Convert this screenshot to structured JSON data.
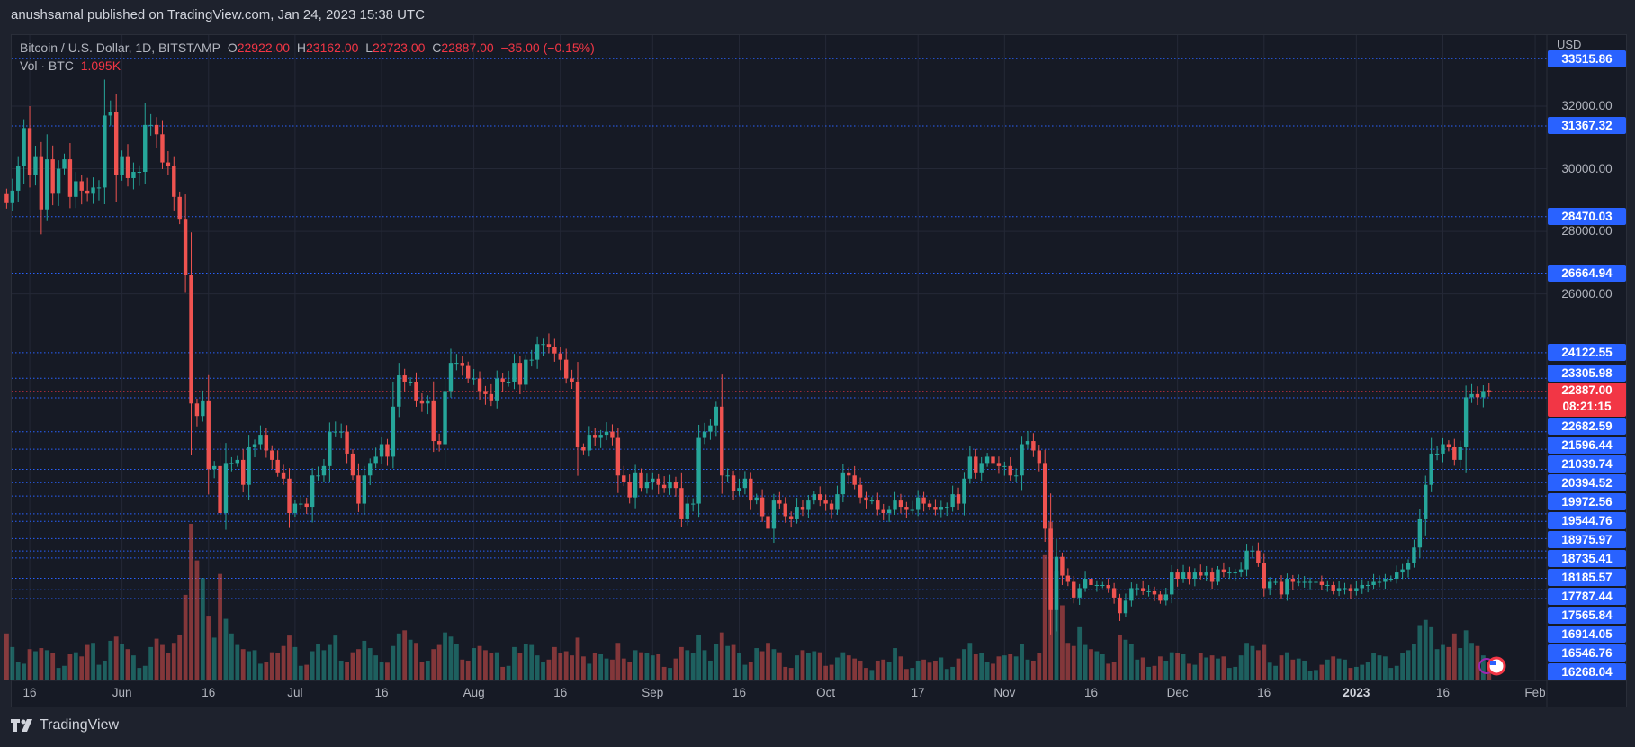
{
  "publisher_line": "anushsamal published on TradingView.com, Jan 24, 2023 15:38 UTC",
  "legend": {
    "symbol": "Bitcoin / U.S. Dollar, 1D, BITSTAMP",
    "open_label": "O",
    "open": "22922.00",
    "high_label": "H",
    "high": "23162.00",
    "low_label": "L",
    "low": "22723.00",
    "close_label": "C",
    "close": "22887.00",
    "change": "−35.00 (−0.15%)",
    "vol_label": "Vol · BTC",
    "vol_value": "1.095K"
  },
  "footer": {
    "brand": "TradingView",
    "logo_icon": "tradingview-logo-icon"
  },
  "colors": {
    "up": "#26a69a",
    "down": "#ef5350",
    "level_line": "#2962ff",
    "current_price": "#f23645",
    "background": "#161a25"
  },
  "chart_data": {
    "type": "candlestick",
    "symbol": "BTCUSD",
    "interval": "1D",
    "start_date": "2022-05-12",
    "currency": "USD",
    "closes": [
      28900,
      29300,
      30100,
      31300,
      29800,
      30400,
      28700,
      30300,
      29200,
      30000,
      30300,
      29100,
      29600,
      29300,
      29200,
      29400,
      29400,
      31700,
      31800,
      29800,
      30400,
      29700,
      29900,
      29900,
      31400,
      31400,
      31100,
      30200,
      30100,
      29100,
      28400,
      26600,
      22500,
      22100,
      22600,
      20400,
      20500,
      19000,
      20600,
      20600,
      20700,
      19900,
      21100,
      21200,
      21500,
      21000,
      20700,
      20300,
      20100,
      19000,
      19300,
      19300,
      19200,
      20200,
      20200,
      20500,
      21600,
      21600,
      21600,
      20900,
      20200,
      19300,
      20200,
      20600,
      20800,
      21200,
      20800,
      22400,
      23400,
      23200,
      23200,
      22600,
      22500,
      22600,
      21300,
      21200,
      22900,
      23800,
      23800,
      23700,
      23300,
      23300,
      22900,
      22800,
      22600,
      23300,
      23200,
      23200,
      23800,
      23100,
      23900,
      23900,
      24400,
      24400,
      24300,
      24100,
      23900,
      23300,
      23200,
      21100,
      21000,
      21500,
      21400,
      21500,
      21600,
      21400,
      20200,
      20000,
      19500,
      20300,
      19800,
      20000,
      20100,
      19900,
      19800,
      20000,
      19800,
      18800,
      19300,
      19300,
      21400,
      21600,
      21800,
      22400,
      20200,
      20200,
      19700,
      19800,
      20100,
      19400,
      19500,
      18900,
      18500,
      19400,
      19300,
      18900,
      18800,
      19200,
      19100,
      19400,
      19600,
      19400,
      19300,
      19100,
      19600,
      20300,
      20200,
      19900,
      19500,
      19400,
      19400,
      19100,
      19000,
      19100,
      19400,
      19200,
      19100,
      19100,
      19500,
      19300,
      19200,
      19100,
      19200,
      19200,
      19600,
      19300,
      20100,
      20800,
      20300,
      20600,
      20800,
      20600,
      20500,
      20500,
      20200,
      20200,
      21200,
      21300,
      21000,
      20600,
      18500,
      15900,
      17600,
      17000,
      16800,
      16300,
      16600,
      16900,
      16700,
      16700,
      16700,
      16600,
      16300,
      15800,
      16200,
      16600,
      16600,
      16500,
      16500,
      16400,
      16200,
      16400,
      17100,
      16900,
      17100,
      16900,
      17100,
      17000,
      17100,
      16800,
      17200,
      17100,
      17100,
      17100,
      17200,
      17800,
      17800,
      17400,
      16600,
      16800,
      16800,
      16400,
      16900,
      16800,
      16800,
      16800,
      16800,
      16800,
      16700,
      16700,
      16500,
      16600,
      16600,
      16500,
      16600,
      16700,
      16700,
      16800,
      16800,
      16900,
      16900,
      17100,
      17200,
      17400,
      17900,
      18800,
      19900,
      20900,
      20900,
      21200,
      21100,
      20700,
      21100,
      22700,
      22800,
      22700,
      22900,
      22887
    ],
    "volumes_k_btc": [
      4.5,
      3.2,
      1.8,
      1.6,
      3.0,
      2.8,
      3.1,
      2.9,
      2.6,
      1.2,
      1.4,
      2.5,
      2.7,
      2.3,
      3.4,
      3.6,
      1.5,
      1.9,
      3.8,
      4.2,
      3.5,
      3.0,
      2.4,
      1.2,
      1.4,
      3.2,
      4.0,
      3.4,
      2.6,
      3.6,
      4.4,
      8.2,
      15.0,
      11.5,
      9.8,
      6.2,
      4.1,
      10.2,
      5.9,
      4.5,
      3.4,
      3.0,
      2.8,
      2.9,
      1.6,
      1.8,
      2.7,
      2.6,
      3.3,
      4.3,
      3.2,
      1.4,
      1.5,
      2.8,
      3.5,
      2.9,
      3.4,
      4.3,
      1.9,
      1.8,
      2.7,
      3.0,
      3.8,
      3.1,
      2.4,
      1.8,
      1.7,
      3.3,
      4.5,
      4.8,
      3.9,
      3.6,
      1.8,
      1.9,
      3.0,
      3.4,
      4.6,
      4.2,
      3.5,
      2.0,
      1.9,
      3.1,
      3.3,
      2.9,
      2.6,
      2.7,
      1.3,
      1.4,
      3.2,
      2.6,
      3.5,
      3.4,
      2.4,
      1.8,
      2.0,
      3.2,
      2.6,
      2.8,
      2.4,
      4.1,
      2.3,
      1.6,
      2.6,
      2.5,
      2.1,
      2.0,
      3.6,
      2.1,
      1.8,
      2.9,
      2.7,
      2.6,
      2.4,
      2.5,
      1.3,
      1.2,
      2.1,
      3.2,
      2.9,
      2.6,
      4.4,
      2.9,
      1.9,
      3.5,
      4.6,
      3.3,
      3.4,
      2.6,
      1.5,
      1.8,
      3.1,
      2.8,
      3.6,
      3.0,
      2.7,
      1.3,
      1.2,
      2.4,
      2.9,
      2.6,
      2.8,
      2.7,
      1.4,
      1.5,
      2.2,
      2.7,
      2.4,
      2.1,
      1.9,
      1.2,
      1.0,
      1.9,
      2.0,
      1.8,
      3.1,
      2.3,
      1.1,
      1.2,
      1.9,
      2.0,
      1.7,
      1.9,
      2.2,
      1.1,
      1.3,
      2.1,
      3.0,
      3.6,
      2.5,
      2.6,
      1.8,
      1.6,
      2.3,
      2.4,
      2.5,
      2.3,
      3.5,
      2.0,
      1.9,
      2.6,
      12.0,
      15.2,
      10.5,
      7.2,
      3.6,
      3.3,
      5.1,
      3.4,
      3.0,
      2.8,
      2.5,
      1.6,
      1.8,
      4.4,
      3.9,
      3.5,
      2.0,
      2.2,
      1.3,
      1.4,
      2.3,
      1.9,
      2.7,
      2.6,
      2.5,
      1.6,
      1.5,
      2.6,
      2.2,
      2.4,
      2.1,
      2.3,
      1.2,
      1.3,
      2.4,
      3.6,
      3.3,
      2.9,
      3.4,
      1.7,
      1.4,
      2.4,
      2.7,
      2.0,
      2.1,
      1.9,
      0.9,
      1.0,
      1.5,
      2.0,
      2.3,
      2.1,
      2.0,
      1.2,
      1.3,
      1.5,
      1.8,
      2.6,
      2.4,
      2.3,
      1.2,
      1.4,
      2.6,
      2.9,
      3.5,
      5.3,
      5.8,
      5.1,
      3.0,
      3.4,
      3.2,
      4.5,
      3.1,
      4.8,
      3.6,
      3.3,
      2.4,
      1.095
    ],
    "last_candle": {
      "open": 22922.0,
      "high": 23162.0,
      "low": 22723.0,
      "close": 22887.0
    },
    "current_price": {
      "value": "22887.00",
      "countdown": "08:21:15"
    },
    "y_axis": {
      "label": "USD",
      "ticks": [
        "32000.00",
        "30000.00",
        "28000.00",
        "26000.00"
      ]
    },
    "levels": [
      "33515.86",
      "31367.32",
      "28470.03",
      "26664.94",
      "24122.55",
      "23305.98",
      "22682.59",
      "21596.44",
      "21039.74",
      "20394.52",
      "19972.56",
      "19544.76",
      "18975.97",
      "18735.41",
      "18185.57",
      "17787.44",
      "17565.84",
      "16914.05",
      "16546.76",
      "16268.04"
    ],
    "x_axis": [
      {
        "label": "16",
        "date": "2022-05-16"
      },
      {
        "label": "Jun",
        "date": "2022-06-01"
      },
      {
        "label": "16",
        "date": "2022-06-16"
      },
      {
        "label": "Jul",
        "date": "2022-07-01"
      },
      {
        "label": "16",
        "date": "2022-07-16"
      },
      {
        "label": "Aug",
        "date": "2022-08-01"
      },
      {
        "label": "16",
        "date": "2022-08-16"
      },
      {
        "label": "Sep",
        "date": "2022-09-01"
      },
      {
        "label": "16",
        "date": "2022-09-16"
      },
      {
        "label": "Oct",
        "date": "2022-10-01"
      },
      {
        "label": "17",
        "date": "2022-10-17"
      },
      {
        "label": "Nov",
        "date": "2022-11-01"
      },
      {
        "label": "16",
        "date": "2022-11-16"
      },
      {
        "label": "Dec",
        "date": "2022-12-01"
      },
      {
        "label": "16",
        "date": "2022-12-16"
      },
      {
        "label": "2023",
        "date": "2023-01-01"
      },
      {
        "label": "16",
        "date": "2023-01-16"
      },
      {
        "label": "Feb",
        "date": "2023-02-01"
      }
    ],
    "grid": true
  }
}
